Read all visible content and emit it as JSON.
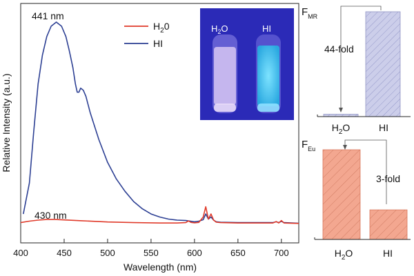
{
  "colors": {
    "h2o": "#e03a2a",
    "hi": "#2c3f93",
    "bar_mr": "#c9cbe8",
    "bar_mr_edge": "#8f93c4",
    "bar_eu": "#f2a38c",
    "bar_eu_edge": "#d7785c",
    "photo_bg": "#3a39c6",
    "vial_h2o": "#d8c8f0",
    "vial_hi": "#49c8f0"
  },
  "chart_data": [
    {
      "type": "line",
      "title": "",
      "xlabel": "Wavelength (nm)",
      "ylabel": "Relative Intensity (a.u.)",
      "xlim": [
        400,
        720
      ],
      "ylim": [
        0,
        100
      ],
      "x_ticks": [
        400,
        450,
        500,
        550,
        600,
        650,
        700
      ],
      "legend": [
        "H₂O",
        "HI"
      ],
      "legend_position": "top-center",
      "annotations": [
        "441 nm",
        "430 nm"
      ],
      "series": [
        {
          "name": "HI",
          "color_key": "hi",
          "x": [
            403,
            410,
            415,
            420,
            425,
            430,
            435,
            441,
            447,
            452,
            456,
            460,
            463,
            465,
            467,
            469,
            472,
            475,
            480,
            490,
            500,
            510,
            520,
            530,
            540,
            550,
            560,
            570,
            580,
            590,
            600,
            605,
            610,
            613,
            616,
            619,
            622,
            625,
            630,
            650,
            690,
            694,
            697,
            700,
            703,
            720
          ],
          "y": [
            5,
            20,
            45,
            68,
            82,
            91,
            96,
            98,
            96,
            91,
            84,
            76,
            68,
            64,
            64,
            66,
            65,
            62,
            54,
            41,
            30,
            22,
            16,
            11,
            7.5,
            5,
            3.5,
            2.5,
            2.0,
            1.8,
            1.2,
            1.5,
            2.2,
            5.0,
            2.5,
            3.5,
            2.0,
            1.2,
            1.0,
            0.8,
            0.8,
            1.2,
            0.8,
            1.4,
            0.8,
            0.5
          ]
        },
        {
          "name": "H₂O",
          "color_key": "h2o",
          "x": [
            400,
            410,
            420,
            430,
            440,
            450,
            470,
            500,
            530,
            560,
            580,
            590,
            593,
            596,
            600,
            605,
            610,
            613,
            616,
            619,
            622,
            625,
            630,
            650,
            690,
            694,
            697,
            700,
            703,
            720
          ],
          "y": [
            0.8,
            1.5,
            2.0,
            2.3,
            2.3,
            2.1,
            1.7,
            1.1,
            0.8,
            0.6,
            0.6,
            0.8,
            1.6,
            0.9,
            0.7,
            0.9,
            3.5,
            8.5,
            2.5,
            5.0,
            2.0,
            1.0,
            0.8,
            0.6,
            0.6,
            1.3,
            0.6,
            1.8,
            0.6,
            0.4
          ]
        }
      ]
    },
    {
      "type": "bar",
      "title": "F_MR",
      "label_main": "F",
      "label_sub": "MR",
      "categories": [
        "H₂O",
        "HI"
      ],
      "values": [
        2.25,
        100
      ],
      "ylim": [
        0,
        100
      ],
      "color_key": "bar_mr",
      "annotation": "44-fold"
    },
    {
      "type": "bar",
      "title": "F_Eu",
      "label_main": "F",
      "label_sub": "Eu",
      "categories": [
        "H₂O",
        "HI"
      ],
      "values": [
        100,
        33
      ],
      "ylim": [
        0,
        100
      ],
      "color_key": "bar_eu",
      "annotation": "3-fold"
    }
  ],
  "photo": {
    "labels": [
      "H₂O",
      "HI"
    ],
    "h2o_main": "H",
    "h2o_sub": "2",
    "h2o_end": "O",
    "hi_label": "HI"
  },
  "legend_items": [
    {
      "main": "H",
      "sub": "2",
      "end": "0"
    },
    {
      "main": "HI",
      "sub": "",
      "end": ""
    }
  ]
}
